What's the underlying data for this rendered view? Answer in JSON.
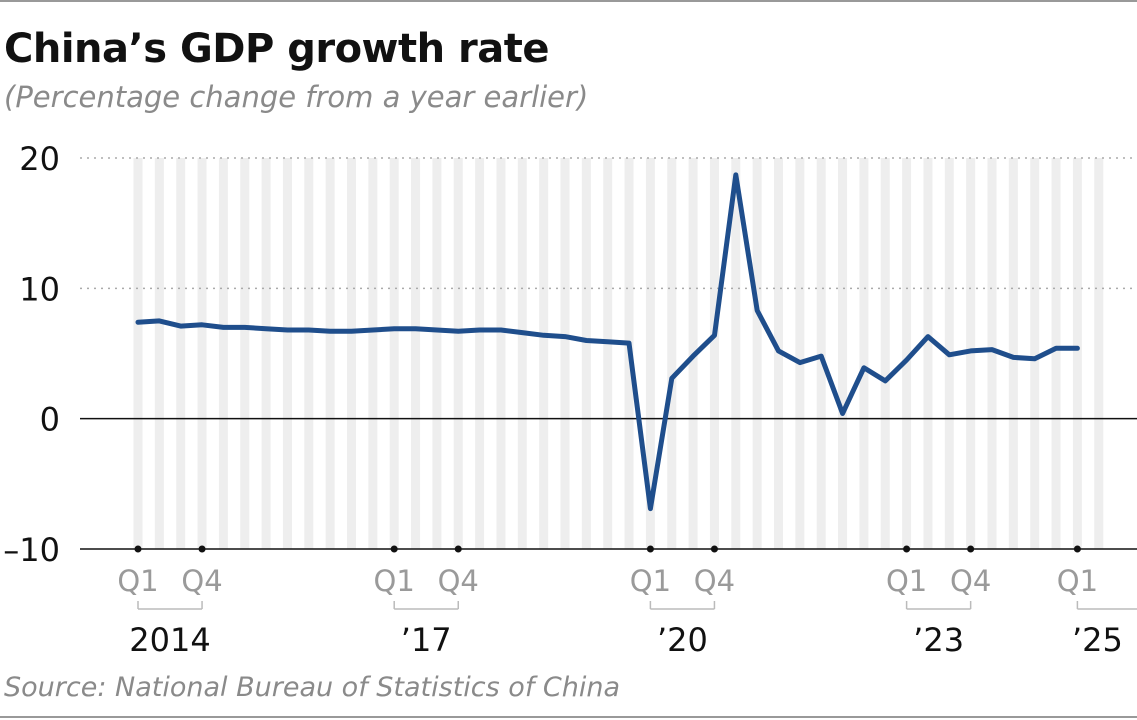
{
  "chart_data": {
    "type": "line",
    "title": "China’s GDP growth rate",
    "subtitle": "(Percentage change from a year earlier)",
    "source": "Source: National Bureau of Statistics of China",
    "ylim": [
      -10,
      20
    ],
    "yticks": [
      {
        "value": 20,
        "label": "20"
      },
      {
        "value": 10,
        "label": "10"
      },
      {
        "value": 0,
        "label": "0"
      },
      {
        "value": -10,
        "label": "–10"
      }
    ],
    "grid": true,
    "line_color": "#1f4e8c",
    "band_color": "#eeeeee",
    "quarter_count": 46,
    "quarter_labels": [
      {
        "index": 0,
        "label": "Q1"
      },
      {
        "index": 3,
        "label": "Q4"
      },
      {
        "index": 12,
        "label": "Q1"
      },
      {
        "index": 15,
        "label": "Q4"
      },
      {
        "index": 24,
        "label": "Q1"
      },
      {
        "index": 27,
        "label": "Q4"
      },
      {
        "index": 36,
        "label": "Q1"
      },
      {
        "index": 39,
        "label": "Q4"
      },
      {
        "index": 44,
        "label": "Q1"
      }
    ],
    "year_labels": [
      {
        "start": 0,
        "end": 3,
        "label": "2014"
      },
      {
        "start": 12,
        "end": 15,
        "label": "’17"
      },
      {
        "start": 24,
        "end": 27,
        "label": "’20"
      },
      {
        "start": 36,
        "end": 39,
        "label": "’23"
      },
      {
        "start": 44,
        "end": 45,
        "label": "’25",
        "open": true
      }
    ],
    "series": [
      {
        "values": [
          7.4,
          7.5,
          7.1,
          7.2,
          7.0,
          7.0,
          6.9,
          6.8,
          6.8,
          6.7,
          6.7,
          6.8,
          6.9,
          6.9,
          6.8,
          6.7,
          6.8,
          6.8,
          6.6,
          6.4,
          6.3,
          6.0,
          5.9,
          5.8,
          -6.9,
          3.1,
          4.8,
          6.4,
          18.7,
          8.3,
          5.2,
          4.3,
          4.8,
          0.4,
          3.9,
          2.9,
          4.5,
          6.3,
          4.9,
          5.2,
          5.3,
          4.7,
          4.6,
          5.4,
          5.4
        ]
      }
    ]
  }
}
